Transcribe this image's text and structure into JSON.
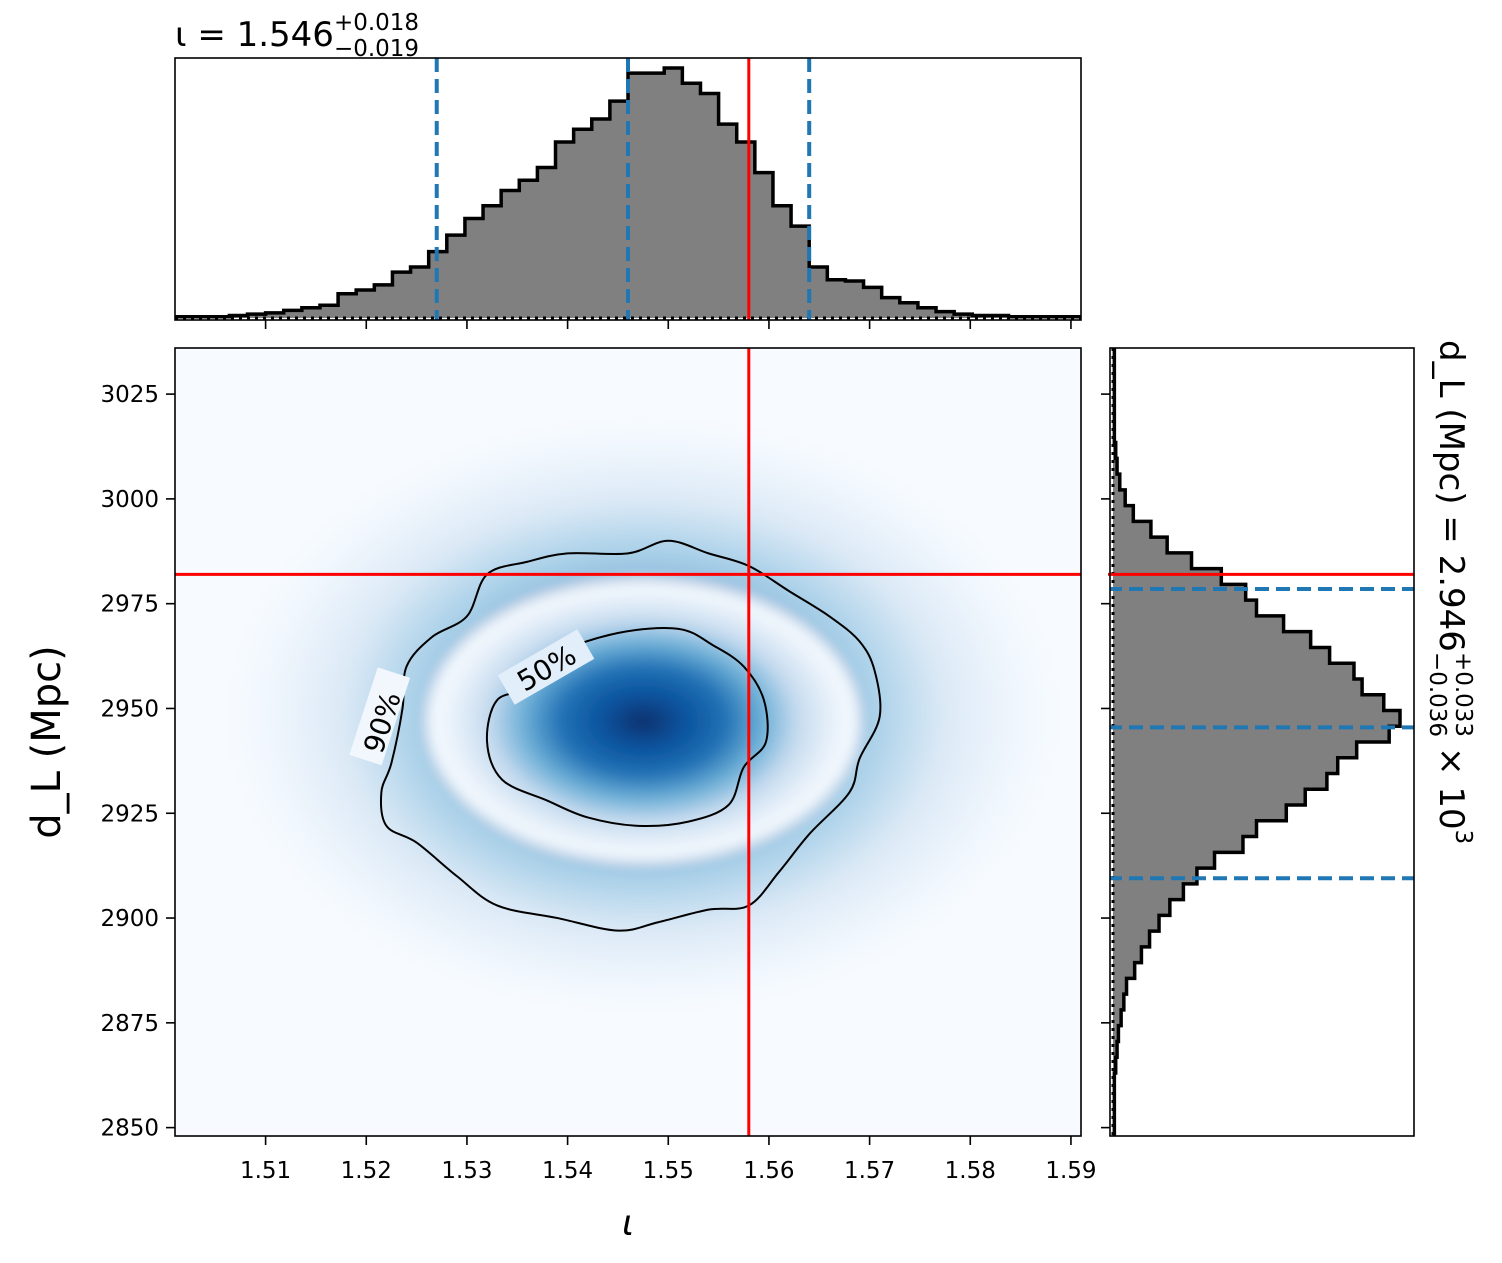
{
  "chart_data": [
    {
      "type": "histogram",
      "panel": "top-marginal",
      "title_base": "ι = 1.546",
      "title_sup": "+0.018",
      "title_sub": "−0.019",
      "median": 1.546,
      "quantiles": [
        1.527,
        1.564
      ],
      "injection": 1.558,
      "xlim": [
        1.501,
        1.591
      ],
      "bin_edges": [
        1.501,
        1.5028,
        1.5046,
        1.5064,
        1.5082,
        1.51,
        1.5118,
        1.5136,
        1.5154,
        1.5172,
        1.519,
        1.5208,
        1.5226,
        1.5244,
        1.5262,
        1.528,
        1.5298,
        1.5316,
        1.5334,
        1.5352,
        1.537,
        1.5388,
        1.5406,
        1.5424,
        1.5442,
        1.546,
        1.5478,
        1.5496,
        1.5514,
        1.5532,
        1.555,
        1.5568,
        1.5586,
        1.5604,
        1.5622,
        1.564,
        1.5658,
        1.5676,
        1.5694,
        1.5712,
        1.573,
        1.5748,
        1.5766,
        1.5784,
        1.5802,
        1.582,
        1.5838,
        1.5856,
        1.5874,
        1.5892,
        1.591
      ],
      "density": [
        1,
        1,
        1,
        2,
        3,
        4,
        6,
        8,
        10,
        19,
        22,
        26,
        36,
        40,
        52,
        65,
        78,
        88,
        100,
        108,
        118,
        138,
        148,
        156,
        170,
        192,
        192,
        196,
        184,
        176,
        152,
        138,
        114,
        88,
        72,
        40,
        30,
        29,
        24,
        16,
        12,
        8,
        5,
        3,
        2,
        2,
        1,
        1,
        1,
        1
      ]
    },
    {
      "type": "heatmap",
      "panel": "joint",
      "xlabel": "ι",
      "ylabel": "d_L (Mpc)",
      "xlim": [
        1.501,
        1.591
      ],
      "ylim": [
        2848,
        3036
      ],
      "xticks": [
        "1.51",
        "1.52",
        "1.53",
        "1.54",
        "1.55",
        "1.56",
        "1.57",
        "1.58",
        "1.59"
      ],
      "yticks": [
        "2850",
        "2875",
        "2900",
        "2925",
        "2950",
        "2975",
        "3000",
        "3025"
      ],
      "contour_labels": [
        "50%",
        "90%"
      ],
      "center": [
        1.5475,
        2947
      ],
      "injection": {
        "x": 1.558,
        "y": 2982
      },
      "contour_50": [
        [
          1.5365,
          2955
        ],
        [
          1.539,
          2963
        ],
        [
          1.545,
          2968
        ],
        [
          1.551,
          2969
        ],
        [
          1.5545,
          2965
        ],
        [
          1.5575,
          2960
        ],
        [
          1.5595,
          2952
        ],
        [
          1.5597,
          2942
        ],
        [
          1.5575,
          2936
        ],
        [
          1.556,
          2927
        ],
        [
          1.552,
          2923
        ],
        [
          1.547,
          2922
        ],
        [
          1.542,
          2924
        ],
        [
          1.538,
          2928
        ],
        [
          1.5335,
          2933
        ],
        [
          1.532,
          2942
        ],
        [
          1.533,
          2952
        ]
      ],
      "contour_90": [
        [
          1.524,
          2960
        ],
        [
          1.5265,
          2967
        ],
        [
          1.53,
          2972
        ],
        [
          1.532,
          2982
        ],
        [
          1.536,
          2985
        ],
        [
          1.54,
          2987
        ],
        [
          1.546,
          2987
        ],
        [
          1.55,
          2990
        ],
        [
          1.554,
          2987
        ],
        [
          1.558,
          2984
        ],
        [
          1.562,
          2978
        ],
        [
          1.566,
          2972
        ],
        [
          1.569,
          2966
        ],
        [
          1.5705,
          2959
        ],
        [
          1.571,
          2948
        ],
        [
          1.569,
          2938
        ],
        [
          1.568,
          2930
        ],
        [
          1.564,
          2920
        ],
        [
          1.561,
          2911
        ],
        [
          1.558,
          2903
        ],
        [
          1.554,
          2902
        ],
        [
          1.549,
          2899
        ],
        [
          1.545,
          2897
        ],
        [
          1.539,
          2900
        ],
        [
          1.533,
          2903
        ],
        [
          1.529,
          2910
        ],
        [
          1.525,
          2918
        ],
        [
          1.522,
          2922
        ],
        [
          1.5215,
          2930
        ],
        [
          1.5225,
          2937
        ],
        [
          1.5236,
          2950
        ]
      ]
    },
    {
      "type": "histogram",
      "panel": "right-marginal",
      "title_base": "d_L (Mpc) = 2.946",
      "title_sup": "+0.033",
      "title_sub": "−0.036",
      "title_tail": "× 10",
      "title_exp": "3",
      "median": 2945.5,
      "quantiles": [
        2909.5,
        2978.5
      ],
      "injection": 2982,
      "ylim": [
        2848,
        3036
      ],
      "bin_edges": [
        2848,
        2851.76,
        2855.52,
        2859.28,
        2863.04,
        2866.8,
        2870.56,
        2874.32,
        2878.08,
        2881.84,
        2885.6,
        2889.36,
        2893.12,
        2896.88,
        2900.64,
        2904.4,
        2908.16,
        2911.92,
        2915.68,
        2919.44,
        2923.2,
        2926.96,
        2930.72,
        2934.48,
        2938.24,
        2942,
        2945.76,
        2949.52,
        2953.28,
        2957.04,
        2960.8,
        2964.56,
        2968.32,
        2972.08,
        2975.84,
        2979.6,
        2983.36,
        2987.12,
        2990.88,
        2994.64,
        2998.4,
        3002.16,
        3005.92,
        3009.68,
        3013.44,
        3017.2,
        3020.96,
        3024.72,
        3028.48,
        3032.24,
        3036
      ],
      "density": [
        1,
        1,
        1,
        1,
        2,
        3,
        4,
        6,
        8,
        10,
        16,
        21,
        27,
        34,
        42,
        52,
        62,
        75,
        96,
        106,
        128,
        142,
        158,
        166,
        180,
        204,
        212,
        200,
        184,
        178,
        160,
        146,
        126,
        106,
        98,
        80,
        58,
        40,
        28,
        15,
        9,
        5,
        3,
        2,
        1,
        1,
        1,
        1,
        1,
        1
      ]
    }
  ]
}
